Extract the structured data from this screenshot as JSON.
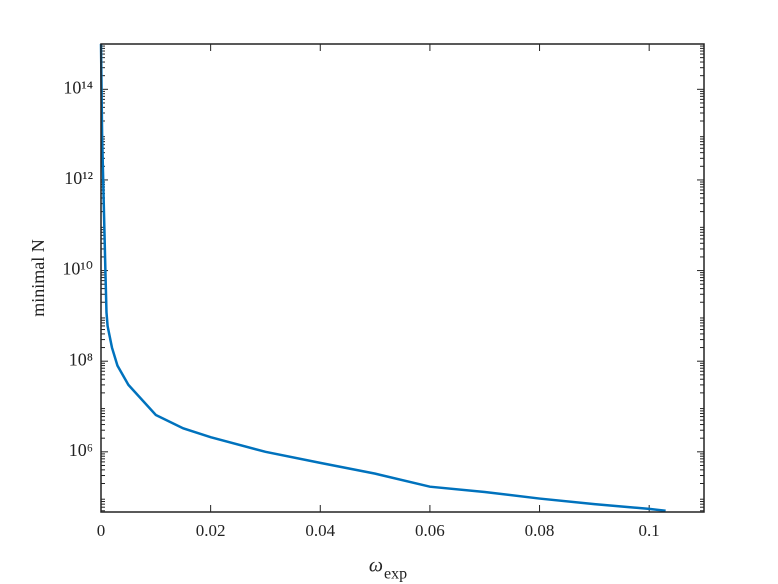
{
  "chart_data": {
    "type": "line",
    "xlabel": "ω",
    "xlabel_subscript": "exp",
    "ylabel": "minimal N",
    "log_y": true,
    "color": "#0072bd",
    "x": [
      0,
      0.0002,
      0.0004,
      0.0006,
      0.0008,
      0.001,
      0.0012,
      0.002,
      0.003,
      0.005,
      0.01,
      0.015,
      0.02,
      0.03,
      0.04,
      0.05,
      0.06,
      0.07,
      0.08,
      0.09,
      0.1,
      0.103
    ],
    "values": [
      1000000000000000.0,
      10000000000000.0,
      1000000000000.0,
      100000000000.0,
      10000000000.0,
      1200000000.0,
      600000000.0,
      200000000.0,
      80000000.0,
      30000000.0,
      6500000.0,
      3300000.0,
      2100000.0,
      1000000.0,
      570000.0,
      330000.0,
      170000.0,
      130000.0,
      93000.0,
      70000.0,
      55000.0,
      50000.0
    ],
    "xlim": [
      0,
      0.11
    ],
    "xticks": [
      0,
      0.02,
      0.04,
      0.06,
      0.08,
      0.1
    ],
    "ylim": [
      47000,
      1000000000000000.0
    ],
    "yticks": [
      {
        "value": 1000000.0,
        "label": "10⁶"
      },
      {
        "value": 100000000.0,
        "label": "10⁸"
      },
      {
        "value": 10000000000.0,
        "label": "10¹⁰"
      },
      {
        "value": 1000000000000.0,
        "label": "10¹²"
      },
      {
        "value": 100000000000000.0,
        "label": "10¹⁴"
      }
    ]
  }
}
